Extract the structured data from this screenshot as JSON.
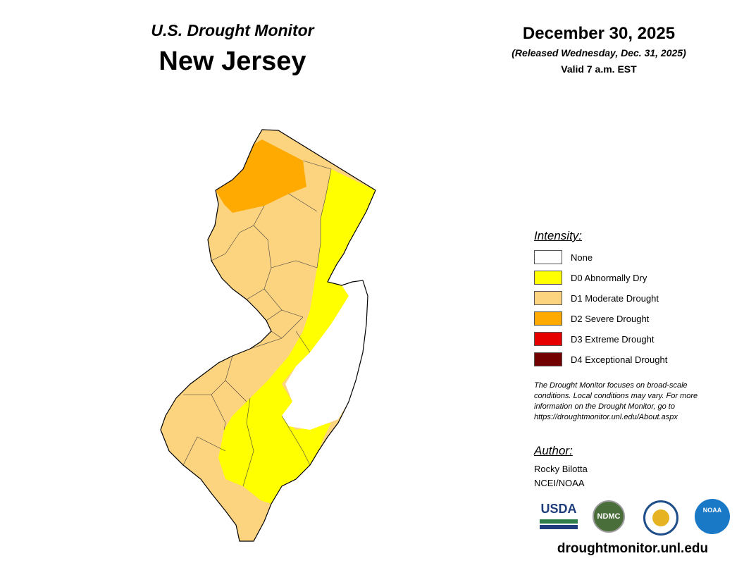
{
  "header": {
    "title": "U.S. Drought Monitor",
    "region": "New Jersey",
    "date": "December 30, 2025",
    "released": "(Released Wednesday, Dec. 31, 2025)",
    "valid": "Valid 7 a.m. EST"
  },
  "legend": {
    "title": "Intensity:",
    "items": [
      {
        "label": "None",
        "color": "#ffffff"
      },
      {
        "label": "D0 Abnormally Dry",
        "color": "#ffff00"
      },
      {
        "label": "D1 Moderate Drought",
        "color": "#fcd37f"
      },
      {
        "label": "D2 Severe Drought",
        "color": "#ffaa00"
      },
      {
        "label": "D3 Extreme Drought",
        "color": "#e60000"
      },
      {
        "label": "D4 Exceptional Drought",
        "color": "#730000"
      }
    ]
  },
  "note": [
    "The Drought Monitor focuses on broad-scale",
    "conditions. Local conditions may vary. For more",
    "information on the Drought Monitor, go to",
    "https://droughtmonitor.unl.edu/About.aspx"
  ],
  "author": {
    "title": "Author:",
    "lines": [
      "Rocky Bilotta",
      "NCEI/NOAA"
    ]
  },
  "logos": {
    "usda": "USDA",
    "ndmc": "NDMC",
    "noaa": "NOAA"
  },
  "footer": "droughtmonitor.unl.edu"
}
